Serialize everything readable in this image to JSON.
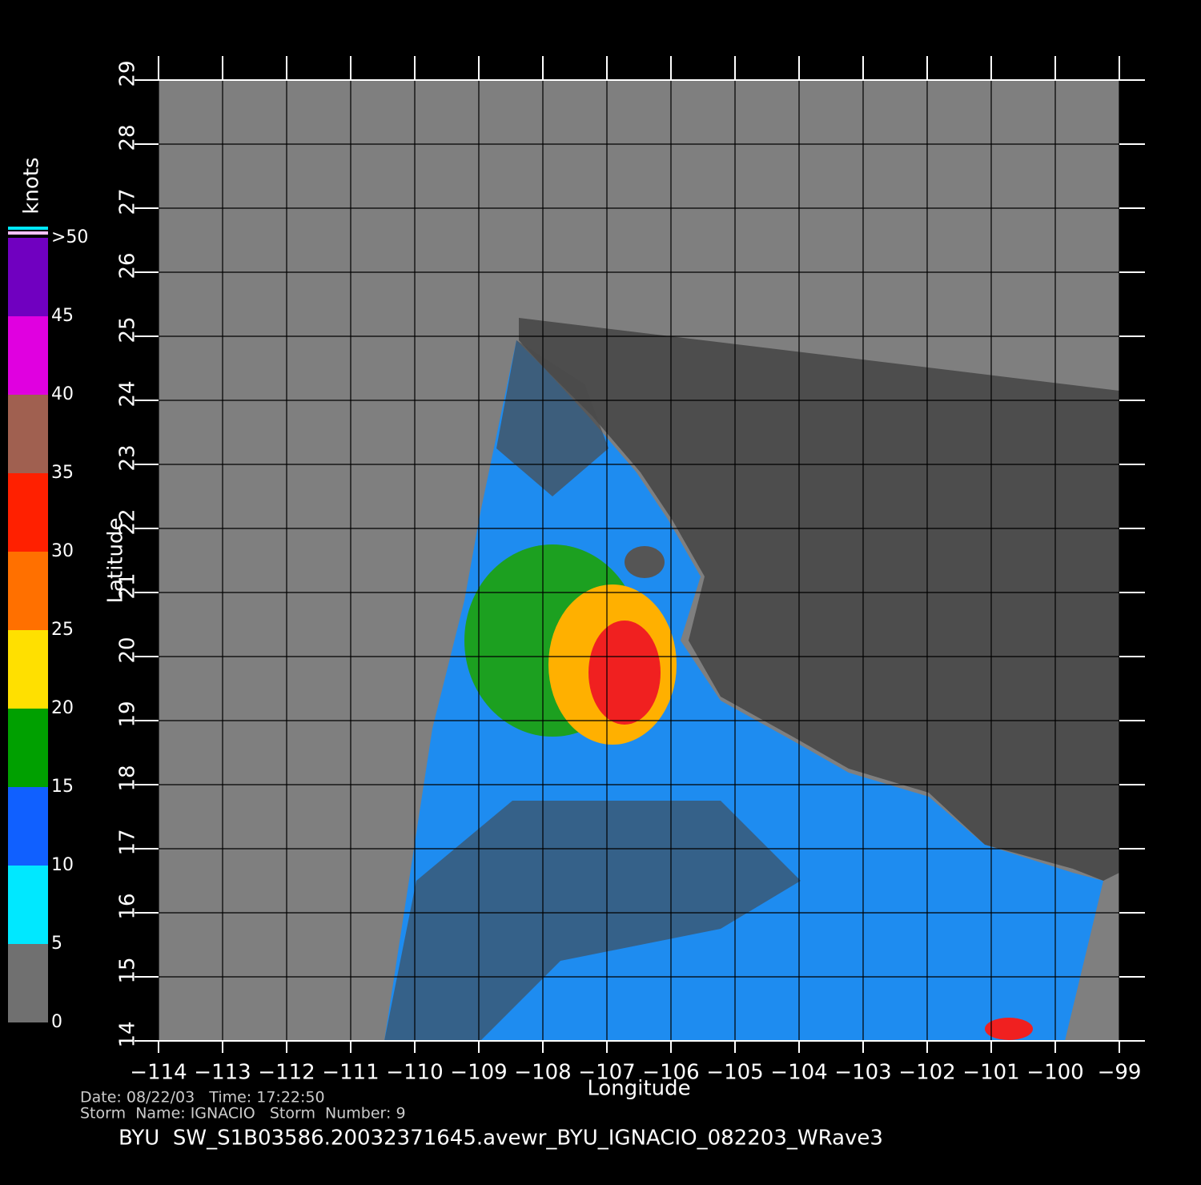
{
  "map": {
    "xlabel": "Longitude",
    "ylabel": "Latitude",
    "xlim": [
      -114,
      -99
    ],
    "ylim": [
      14,
      29
    ],
    "xticks": [
      {
        "value": -114,
        "label": "−114"
      },
      {
        "value": -113,
        "label": "−113"
      },
      {
        "value": -112,
        "label": "−112"
      },
      {
        "value": -111,
        "label": "−111"
      },
      {
        "value": -110,
        "label": "−110"
      },
      {
        "value": -109,
        "label": "−109"
      },
      {
        "value": -108,
        "label": "−108"
      },
      {
        "value": -107,
        "label": "−107"
      },
      {
        "value": -106,
        "label": "−106"
      },
      {
        "value": -105,
        "label": "−105"
      },
      {
        "value": -104,
        "label": "−104"
      },
      {
        "value": -103,
        "label": "−103"
      },
      {
        "value": -102,
        "label": "−102"
      },
      {
        "value": -101,
        "label": "−101"
      },
      {
        "value": -100,
        "label": "−100"
      },
      {
        "value": -99,
        "label": "−99"
      }
    ],
    "yticks": [
      14,
      15,
      16,
      17,
      18,
      19,
      20,
      21,
      22,
      23,
      24,
      25,
      26,
      27,
      28,
      29
    ],
    "grid": true
  },
  "colorbar": {
    "title": "knots",
    "lim": [
      0,
      50
    ],
    "ticks": [
      0,
      5,
      10,
      15,
      20,
      25,
      30,
      35,
      40,
      {
        "value": 50,
        "label": ">50"
      }
    ],
    "extra_tick": 45,
    "colors": [
      "#707070",
      "#00e8ff",
      "#1060ff",
      "#00a000",
      "#ffe000",
      "#ff7000",
      "#ff2000",
      "#a06050",
      "#e000e0",
      "#7000c0"
    ]
  },
  "info": {
    "line1": "Date: 08/22/03   Time: 17:22:50",
    "line2": "Storm  Name: IGNACIO   Storm  Number: 9",
    "title": "BYU  SW_S1B03586.20032371645.avewr_BYU_IGNACIO_082203_WRave3"
  }
}
